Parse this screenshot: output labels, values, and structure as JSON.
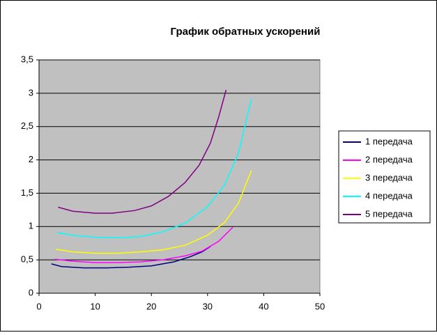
{
  "chart_data": {
    "type": "line",
    "title": "График обратных ускорений",
    "xlim": [
      0,
      50
    ],
    "xticks": [
      0,
      10,
      20,
      30,
      40,
      50
    ],
    "ylim": [
      0,
      3.5
    ],
    "yticks": [
      0,
      {
        "value": 0.5,
        "label": "0,5"
      },
      1,
      {
        "value": 1.5,
        "label": "1,5"
      },
      2,
      {
        "value": 2.5,
        "label": "2,5"
      },
      3,
      {
        "value": 3.5,
        "label": "3,5"
      }
    ],
    "grid": true,
    "legend": "right",
    "series": [
      {
        "name": "1 передача",
        "color": "#000080",
        "x": [
          2.2,
          4,
          8,
          12,
          16,
          20,
          24,
          27,
          29,
          30.5
        ],
        "values": [
          0.44,
          0.4,
          0.38,
          0.38,
          0.39,
          0.41,
          0.47,
          0.55,
          0.62,
          0.7
        ]
      },
      {
        "name": "2 передача",
        "color": "#ff00ff",
        "x": [
          2.8,
          6,
          10,
          14,
          18,
          22,
          26,
          29,
          32,
          34.5
        ],
        "values": [
          0.51,
          0.48,
          0.46,
          0.46,
          0.47,
          0.5,
          0.56,
          0.63,
          0.78,
          0.99
        ]
      },
      {
        "name": "3 передача",
        "color": "#ffff00",
        "x": [
          3,
          6,
          10,
          14,
          18,
          22,
          26,
          30,
          33,
          35.5,
          37.8
        ],
        "values": [
          0.66,
          0.62,
          0.6,
          0.6,
          0.62,
          0.65,
          0.72,
          0.87,
          1.06,
          1.35,
          1.84
        ]
      },
      {
        "name": "4 передача",
        "color": "#00ffff",
        "x": [
          3.2,
          6,
          10,
          14,
          18,
          22,
          26,
          30,
          33,
          35.5,
          37.8
        ],
        "values": [
          0.91,
          0.87,
          0.84,
          0.83,
          0.85,
          0.92,
          1.05,
          1.3,
          1.62,
          2.1,
          2.92
        ]
      },
      {
        "name": "5 передача",
        "color": "#800080",
        "x": [
          3.4,
          6,
          10,
          13,
          17,
          20,
          23,
          26,
          28.5,
          30.5,
          32,
          33.3
        ],
        "values": [
          1.29,
          1.23,
          1.2,
          1.2,
          1.24,
          1.31,
          1.45,
          1.66,
          1.92,
          2.25,
          2.65,
          3.05
        ]
      }
    ]
  }
}
